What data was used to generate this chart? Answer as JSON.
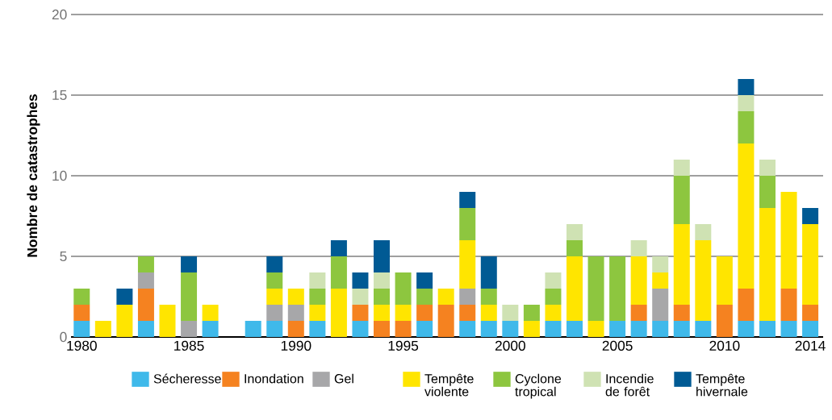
{
  "chart_data": {
    "type": "bar",
    "stacked": true,
    "ylabel": "Nombre de catastrophes",
    "x": [
      1980,
      1981,
      1982,
      1983,
      1984,
      1985,
      1986,
      1987,
      1988,
      1989,
      1990,
      1991,
      1992,
      1993,
      1994,
      1995,
      1996,
      1997,
      1998,
      1999,
      2000,
      2001,
      2002,
      2003,
      2004,
      2005,
      2006,
      2007,
      2008,
      2009,
      2010,
      2011,
      2012,
      2013,
      2014
    ],
    "xlim": [
      1979.5,
      2014.6
    ],
    "xticks": [
      1980,
      1985,
      1990,
      1995,
      2000,
      2005,
      2010,
      2014
    ],
    "ylim": [
      0,
      20
    ],
    "yticks": [
      0,
      5,
      10,
      15,
      20
    ],
    "grid": "y",
    "legend": "bottom",
    "series": [
      {
        "name": "Sécheresse",
        "color": "#3fb9ea",
        "values": [
          1,
          0,
          0,
          1,
          0,
          0,
          1,
          0,
          1,
          1,
          0,
          1,
          0,
          1,
          0,
          0,
          1,
          0,
          1,
          1,
          1,
          0,
          1,
          1,
          0,
          1,
          1,
          1,
          1,
          1,
          0,
          1,
          1,
          1,
          1
        ]
      },
      {
        "name": "Inondation",
        "color": "#f58220",
        "values": [
          1,
          0,
          0,
          2,
          0,
          0,
          0,
          0,
          0,
          0,
          1,
          0,
          0,
          1,
          1,
          1,
          1,
          2,
          1,
          0,
          0,
          0,
          0,
          0,
          0,
          0,
          1,
          0,
          1,
          0,
          2,
          2,
          0,
          2,
          1
        ]
      },
      {
        "name": "Gel",
        "color": "#a7a7a9",
        "values": [
          0,
          0,
          0,
          1,
          0,
          1,
          0,
          0,
          0,
          1,
          1,
          0,
          0,
          0,
          0,
          0,
          0,
          0,
          1,
          0,
          0,
          0,
          0,
          0,
          0,
          0,
          0,
          2,
          0,
          0,
          0,
          0,
          0,
          0,
          0
        ]
      },
      {
        "name": "Tempête violente",
        "color": "#ffe500",
        "values": [
          0,
          1,
          2,
          0,
          2,
          0,
          1,
          0,
          0,
          1,
          1,
          1,
          3,
          0,
          1,
          1,
          0,
          1,
          3,
          1,
          0,
          1,
          1,
          4,
          1,
          0,
          3,
          1,
          5,
          5,
          3,
          9,
          7,
          6,
          5
        ]
      },
      {
        "name": "Cyclone tropical",
        "color": "#8dc63f",
        "values": [
          1,
          0,
          0,
          1,
          0,
          3,
          0,
          0,
          0,
          1,
          0,
          1,
          2,
          0,
          1,
          2,
          1,
          0,
          2,
          1,
          0,
          1,
          1,
          1,
          4,
          4,
          0,
          0,
          3,
          0,
          0,
          2,
          2,
          0,
          0
        ]
      },
      {
        "name": "Incendie de forêt",
        "color": "#cfe2b3",
        "values": [
          0,
          0,
          0,
          0,
          0,
          0,
          0,
          0,
          0,
          0,
          0,
          1,
          0,
          1,
          1,
          0,
          0,
          0,
          0,
          0,
          1,
          0,
          1,
          1,
          0,
          0,
          1,
          1,
          1,
          1,
          0,
          1,
          1,
          0,
          0
        ]
      },
      {
        "name": "Tempête hivernale",
        "color": "#005a94",
        "values": [
          0,
          0,
          1,
          0,
          0,
          1,
          0,
          0,
          0,
          1,
          0,
          0,
          1,
          1,
          2,
          0,
          1,
          0,
          1,
          2,
          0,
          0,
          0,
          0,
          0,
          0,
          0,
          0,
          0,
          0,
          0,
          1,
          0,
          0,
          1
        ]
      }
    ]
  }
}
